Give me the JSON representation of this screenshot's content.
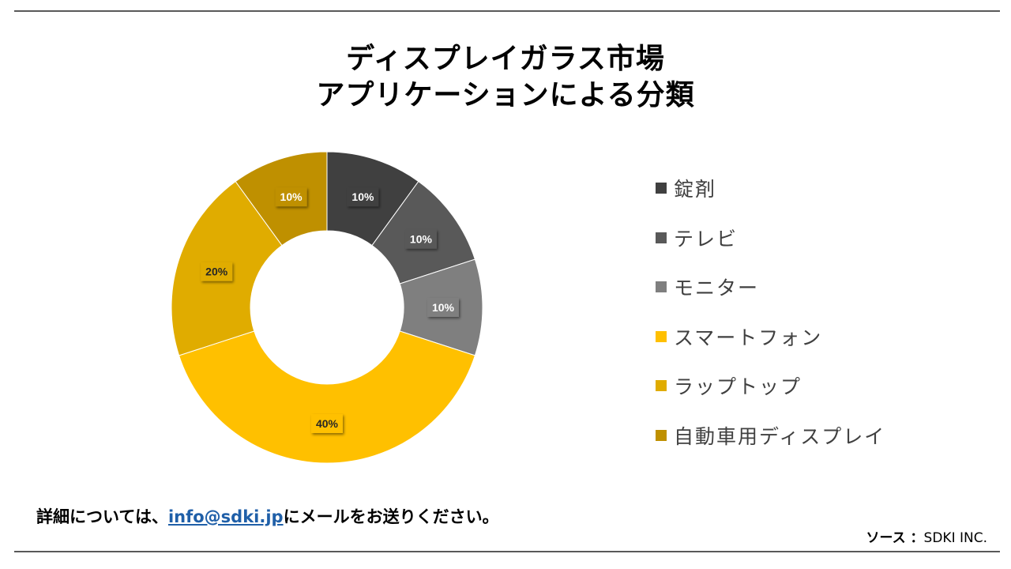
{
  "title": {
    "line1": "ディスプレイガラス市場",
    "line2": "アプリケーションによる分類"
  },
  "chart_data": {
    "type": "pie",
    "donut": true,
    "categories": [
      "錠剤",
      "テレビ",
      "モニター",
      "スマートフォン",
      "ラップトップ",
      "自動車用ディスプレイ"
    ],
    "values": [
      10,
      10,
      10,
      40,
      20,
      10
    ],
    "data_labels": [
      "10%",
      "10%",
      "10%",
      "40%",
      "20%",
      "10%"
    ],
    "colors": [
      "#404040",
      "#595959",
      "#7f7f7f",
      "#ffc000",
      "#e0ac00",
      "#bf9000"
    ],
    "legend_position": "right"
  },
  "footer": {
    "contact_prefix": "詳細については、",
    "contact_email": "info@sdki.jp",
    "contact_suffix": "にメールをお送りください。",
    "source_label": "ソース ：",
    "source_value": "SDKI INC."
  }
}
